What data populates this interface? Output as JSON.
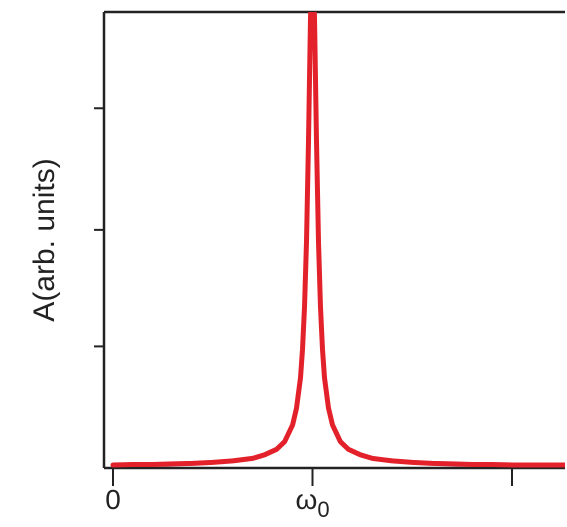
{
  "chart_data": {
    "type": "line",
    "title": "",
    "xlabel": "",
    "ylabel": "A(arb. units)",
    "xlim": [
      0,
      1.3
    ],
    "ylim": [
      0,
      1
    ],
    "x_ticks": [
      {
        "value": 0,
        "label": "0"
      },
      {
        "value": 0.5,
        "label": "ω0",
        "base": "ω",
        "sub": "0"
      },
      {
        "value": 1.0,
        "label": ""
      }
    ],
    "y_ticks": [
      0.24,
      0.47,
      0.71,
      0.94
    ],
    "grid": false,
    "legend": "none",
    "series": [
      {
        "color": "#e3212b",
        "x": [
          0.0,
          0.05,
          0.1,
          0.15,
          0.2,
          0.25,
          0.3,
          0.35,
          0.38,
          0.41,
          0.43,
          0.45,
          0.46,
          0.47,
          0.475,
          0.48,
          0.485,
          0.49,
          0.495,
          0.5,
          0.505,
          0.51,
          0.515,
          0.52,
          0.525,
          0.53,
          0.54,
          0.55,
          0.57,
          0.59,
          0.62,
          0.65,
          0.7,
          0.75,
          0.8,
          0.85,
          0.9,
          0.95,
          1.0,
          1.05,
          1.1,
          1.15,
          1.2,
          1.25,
          1.3
        ],
        "y": [
          0.006,
          0.007,
          0.007,
          0.008,
          0.009,
          0.011,
          0.014,
          0.019,
          0.026,
          0.037,
          0.052,
          0.085,
          0.118,
          0.178,
          0.234,
          0.317,
          0.446,
          0.645,
          0.889,
          1.0,
          0.889,
          0.645,
          0.446,
          0.317,
          0.234,
          0.178,
          0.118,
          0.085,
          0.052,
          0.037,
          0.026,
          0.019,
          0.014,
          0.011,
          0.009,
          0.008,
          0.007,
          0.007,
          0.006,
          0.006,
          0.006,
          0.006,
          0.006,
          0.006,
          0.006
        ]
      }
    ]
  },
  "colors": {
    "curve": "#e3212b",
    "axis": "#222222"
  }
}
